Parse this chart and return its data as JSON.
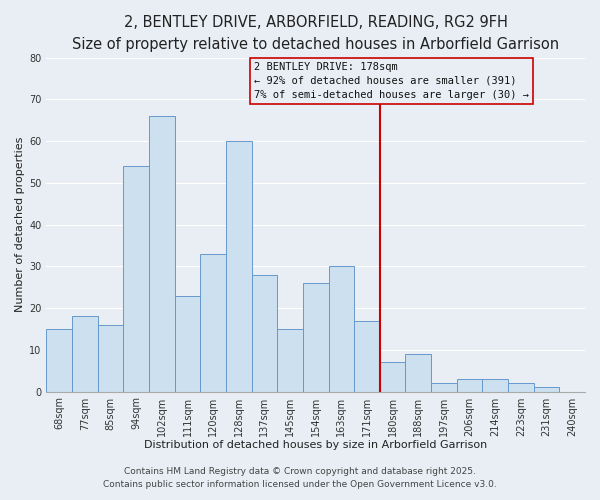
{
  "title": "2, BENTLEY DRIVE, ARBORFIELD, READING, RG2 9FH",
  "subtitle": "Size of property relative to detached houses in Arborfield Garrison",
  "xlabel": "Distribution of detached houses by size in Arborfield Garrison",
  "ylabel": "Number of detached properties",
  "bar_labels": [
    "68sqm",
    "77sqm",
    "85sqm",
    "94sqm",
    "102sqm",
    "111sqm",
    "120sqm",
    "128sqm",
    "137sqm",
    "145sqm",
    "154sqm",
    "163sqm",
    "171sqm",
    "180sqm",
    "188sqm",
    "197sqm",
    "206sqm",
    "214sqm",
    "223sqm",
    "231sqm",
    "240sqm"
  ],
  "bar_values": [
    15,
    18,
    16,
    54,
    66,
    23,
    33,
    60,
    28,
    15,
    26,
    30,
    17,
    7,
    9,
    2,
    3,
    3,
    2,
    1,
    0
  ],
  "bar_color": "#cce0f0",
  "bar_edge_color": "#6699cc",
  "ylim": [
    0,
    80
  ],
  "yticks": [
    0,
    10,
    20,
    30,
    40,
    50,
    60,
    70,
    80
  ],
  "vline_idx": 13,
  "vline_color": "#cc0000",
  "annotation_title": "2 BENTLEY DRIVE: 178sqm",
  "annotation_line1": "← 92% of detached houses are smaller (391)",
  "annotation_line2": "7% of semi-detached houses are larger (30) →",
  "footer1": "Contains HM Land Registry data © Crown copyright and database right 2025.",
  "footer2": "Contains public sector information licensed under the Open Government Licence v3.0.",
  "background_color": "#e8eef4",
  "plot_bg_color": "#e8eef4",
  "grid_color": "#ffffff",
  "title_fontsize": 10.5,
  "subtitle_fontsize": 9,
  "axis_label_fontsize": 8,
  "tick_fontsize": 7,
  "annotation_fontsize": 7.5,
  "footer_fontsize": 6.5
}
